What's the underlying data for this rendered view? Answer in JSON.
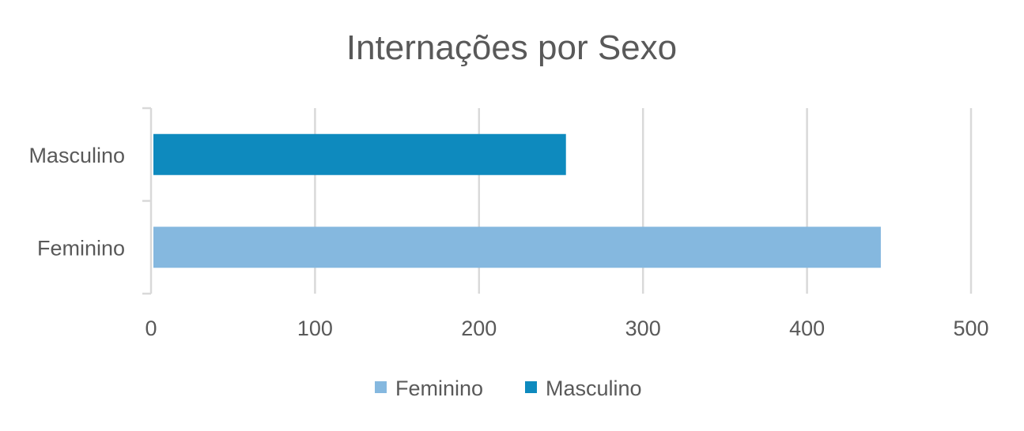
{
  "chart_data": {
    "type": "bar",
    "orientation": "horizontal",
    "title": "Internações por Sexo",
    "xlabel": "",
    "ylabel": "",
    "categories": [
      "Feminino",
      "Masculino"
    ],
    "values": [
      445,
      253
    ],
    "colors": [
      "#85b8df",
      "#0e8abe"
    ],
    "xlim": [
      0,
      500
    ],
    "x_ticks": [
      "0",
      "100",
      "200",
      "300",
      "400",
      "500"
    ],
    "grid": true,
    "legend": {
      "placement": "bottom",
      "entries": [
        "Feminino",
        "Masculino"
      ]
    },
    "gridline_color": "#d9d9d9",
    "axis_color": "#d9d9d9"
  }
}
